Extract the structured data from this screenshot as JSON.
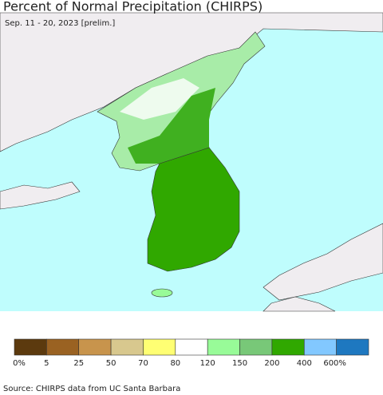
{
  "header": {
    "title": "Percent of Normal Precipitation (CHIRPS)",
    "subtitle": "Sep. 11 - 20, 2023 [prelim.]"
  },
  "legend": {
    "colors": [
      "#5c3a0e",
      "#9a6222",
      "#c8944c",
      "#d8c88e",
      "#ffff73",
      "#ffffff",
      "#98fb98",
      "#78c878",
      "#30a800",
      "#82c8ff",
      "#1e78c0"
    ],
    "labels": [
      "0%",
      "5",
      "25",
      "50",
      "70",
      "80",
      "120",
      "150",
      "200",
      "400",
      "600%"
    ]
  },
  "source": "Source: CHIRPS data from UC Santa Barbara"
}
